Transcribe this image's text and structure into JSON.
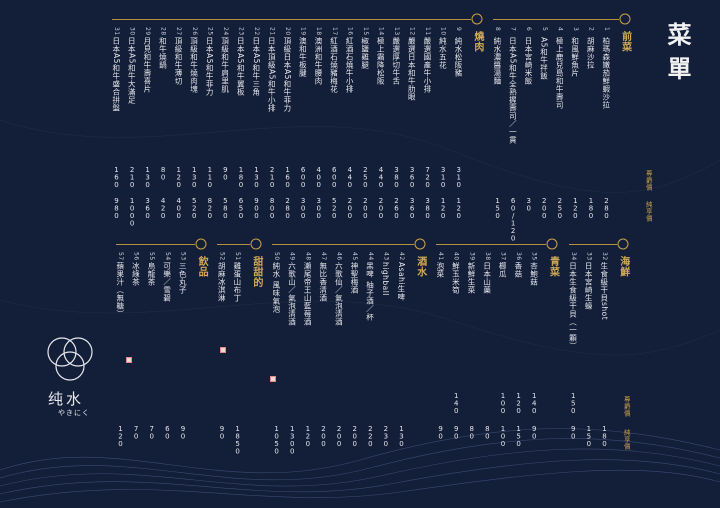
{
  "title": "菜單",
  "logo": {
    "name": "纯水",
    "sub": "やきにく"
  },
  "price_labels": [
    "尊爵價",
    "純享價"
  ],
  "sections": [
    {
      "name": "前菜",
      "items": [
        {
          "no": 1,
          "name": "柏瑪森嫩茄鮮蝦沙拉",
          "prices": [
            null,
            280
          ]
        },
        {
          "no": 2,
          "name": "胡麻沙拉",
          "prices": [
            null,
            180
          ]
        },
        {
          "no": 3,
          "name": "和風鮮魚片",
          "prices": [
            null,
            120
          ]
        },
        {
          "no": 4,
          "name": "極上鹿兒島和牛壽司",
          "prices": [
            null,
            250
          ]
        },
        {
          "no": 5,
          "name": "A5和牛拌飯",
          "prices": [
            null,
            200
          ]
        },
        {
          "no": 6,
          "name": "日本宮崎米飯",
          "prices": [
            null,
            30
          ]
        },
        {
          "no": 7,
          "name": "日本A5和牛全熟握壽司／一貫",
          "prices": [
            null,
            "60/120"
          ]
        },
        {
          "no": 8,
          "name": "純水濃醬湯麵",
          "prices": [
            null,
            150
          ]
        }
      ]
    },
    {
      "name": "燒肉",
      "items": [
        {
          "no": 9,
          "name": "純水松阪豬",
          "prices": [
            310,
            120
          ]
        },
        {
          "no": 10,
          "name": "純水五花",
          "prices": [
            310,
            120
          ]
        },
        {
          "no": 11,
          "name": "嚴選國產牛小排",
          "prices": [
            720,
            380
          ]
        },
        {
          "no": 12,
          "name": "嚴選日本和牛肋眼",
          "prices": [
            360,
            360
          ]
        },
        {
          "no": 13,
          "name": "嚴選厚切牛舌",
          "prices": [
            380,
            260
          ]
        },
        {
          "no": 14,
          "name": "極上霜降松阪",
          "prices": [
            440,
            200
          ]
        },
        {
          "no": 15,
          "name": "椒鹽雞腿",
          "prices": [
            250,
            200
          ]
        },
        {
          "no": 16,
          "name": "紅酒石燒牛小排",
          "prices": [
            440,
            200
          ]
        },
        {
          "no": 17,
          "name": "紅酒石燒豬梅花",
          "prices": [
            600,
            520
          ]
        },
        {
          "no": 18,
          "name": "澳洲和牛腰肉",
          "prices": [
            400,
            300
          ]
        },
        {
          "no": 19,
          "name": "澳和牛板腱",
          "prices": [
            600,
            300
          ]
        },
        {
          "no": 20,
          "name": "頂級日本A5和牛菲力",
          "prices": [
            160,
            280
          ]
        },
        {
          "no": 21,
          "name": "日本頂級A5和牛小排",
          "prices": [
            210,
            800
          ]
        },
        {
          "no": 22,
          "name": "日本A5和牛三角",
          "prices": [
            130,
            900
          ]
        },
        {
          "no": 23,
          "name": "日本A5和牛翼板",
          "prices": [
            180,
            650
          ]
        },
        {
          "no": 24,
          "name": "頂級和牛肩里肌",
          "prices": [
            90,
            580
          ]
        },
        {
          "no": 25,
          "name": "日本A5和牛菲力",
          "prices": [
            110,
            820
          ]
        },
        {
          "no": 26,
          "name": "頂級和牛燒肉塊",
          "prices": [
            130,
            520
          ]
        },
        {
          "no": 27,
          "name": "頂級和牛薄切",
          "prices": [
            120,
            400
          ]
        },
        {
          "no": 28,
          "name": "和牛燒鍋",
          "prices": [
            80,
            420
          ]
        },
        {
          "no": 29,
          "name": "月見和牛壽喜片",
          "prices": [
            130,
            360
          ]
        },
        {
          "no": 30,
          "name": "日本A5和牛大滿足",
          "prices": [
            210,
            1000
          ]
        },
        {
          "no": 31,
          "name": "日本A5和牛盛合拼盤",
          "prices": [
            160,
            980
          ]
        }
      ]
    },
    {
      "name": "海鮮",
      "items": [
        {
          "no": 32,
          "name": "生食級干貝shot",
          "prices": [
            null,
            180
          ]
        },
        {
          "no": 33,
          "name": "日本宮崎生蠔",
          "prices": [
            null,
            150
          ]
        },
        {
          "no": 34,
          "name": "日本生食級干貝（一顆）",
          "prices": [
            150,
            90
          ]
        }
      ]
    },
    {
      "name": "青菜",
      "items": [
        {
          "no": 35,
          "name": "杏鮑菇",
          "prices": [
            140,
            90
          ]
        },
        {
          "no": 36,
          "name": "香菇",
          "prices": [
            120,
            150
          ]
        },
        {
          "no": 37,
          "name": "櫛瓜",
          "prices": [
            100,
            100
          ]
        },
        {
          "no": 38,
          "name": "日本山藥",
          "prices": [
            null,
            80
          ]
        },
        {
          "no": 39,
          "name": "新鮮生菜",
          "prices": [
            null,
            80
          ]
        },
        {
          "no": 40,
          "name": "鮮玉米筍",
          "prices": [
            140,
            90
          ]
        },
        {
          "no": 41,
          "name": "泡菜",
          "prices": [
            null,
            90
          ]
        }
      ]
    },
    {
      "name": "酒水",
      "items": [
        {
          "no": 42,
          "name": "Asahi生啤",
          "prices": [
            null,
            130
          ]
        },
        {
          "no": 43,
          "name": "highball",
          "prices": [
            null,
            230
          ]
        },
        {
          "no": 44,
          "name": "黑啤 柚子酒／杯",
          "prices": [
            null,
            220
          ]
        },
        {
          "no": 45,
          "name": "神聖梅酒",
          "prices": [
            null,
            200
          ]
        },
        {
          "no": 46,
          "name": "六歌仙／氣泡清酒",
          "prices": [
            null,
            200
          ]
        },
        {
          "no": 47,
          "name": "無比香清酒",
          "prices": [
            null,
            200
          ]
        },
        {
          "no": 48,
          "name": "瀨尾帝王山藍莓酒",
          "prices": [
            null,
            120
          ]
        },
        {
          "no": 49,
          "name": "六歌山／氣泡清酒",
          "prices": [
            null,
            1300
          ]
        },
        {
          "no": 50,
          "name": "純水 風味氣泡",
          "prices": [
            null,
            1050
          ]
        }
      ]
    },
    {
      "name": "甜甜的",
      "items": [
        {
          "no": 51,
          "name": "雞蛋山布丁",
          "prices": [
            null,
            1850
          ]
        },
        {
          "no": 52,
          "name": "胡麻冰淇淋",
          "prices": [
            null,
            90
          ]
        }
      ]
    },
    {
      "name": "飲品",
      "items": [
        {
          "no": 53,
          "name": "三色丸子",
          "prices": [
            null,
            90
          ]
        },
        {
          "no": 54,
          "name": "可樂／雪碧",
          "prices": [
            null,
            60
          ]
        },
        {
          "no": 55,
          "name": "烏龍茶",
          "prices": [
            null,
            70
          ]
        },
        {
          "no": 56,
          "name": "冰綠茶",
          "prices": [
            null,
            70
          ]
        },
        {
          "no": 57,
          "name": "蘋果汁（無糖）",
          "prices": [
            null,
            120
          ]
        }
      ]
    }
  ]
}
